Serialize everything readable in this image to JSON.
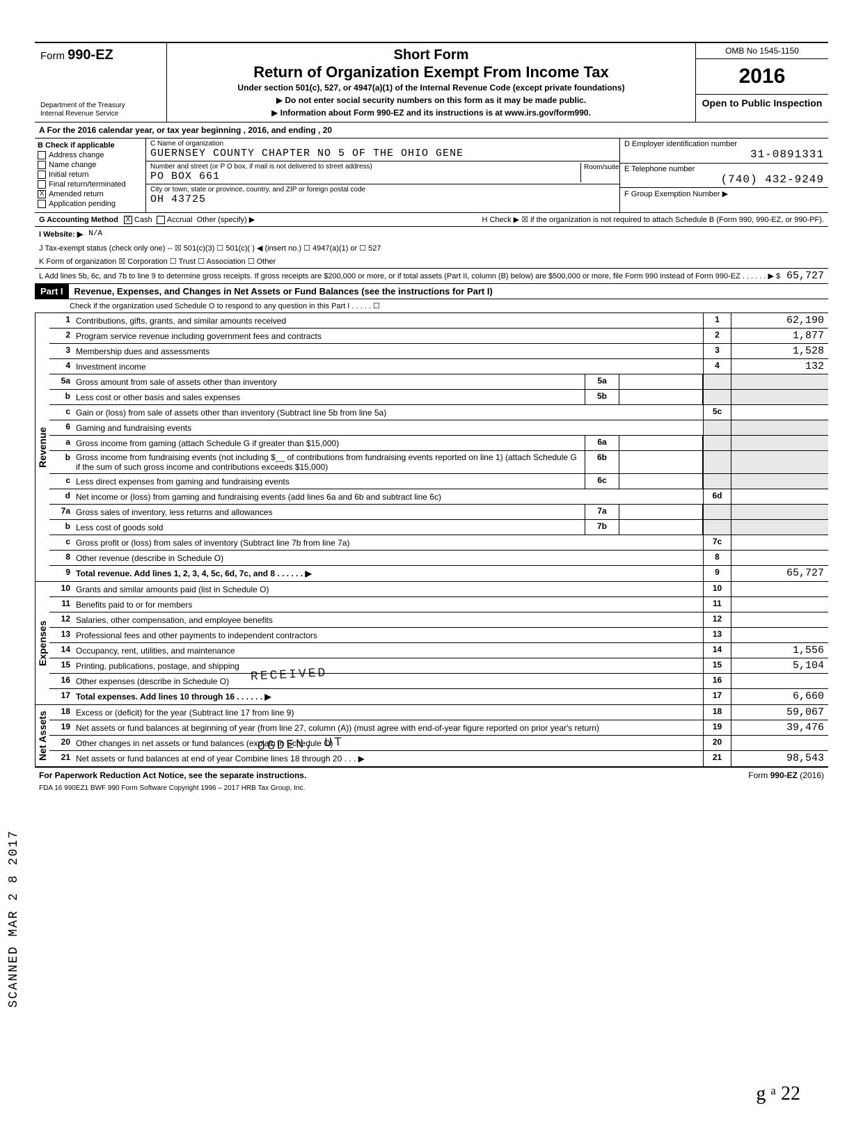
{
  "header": {
    "form_label": "Form",
    "form_number": "990-EZ",
    "dept1": "Department of the Treasury",
    "dept2": "Internal Revenue Service",
    "short": "Short Form",
    "title": "Return of Organization Exempt From Income Tax",
    "sub": "Under section 501(c), 527, or 4947(a)(1) of the Internal Revenue Code (except private foundations)",
    "note1": "Do not enter social security numbers on this form as it may be made public.",
    "note2": "Information about Form 990-EZ and its instructions is at www.irs.gov/form990.",
    "omb": "OMB No 1545-1150",
    "year": "2016",
    "open": "Open to Public Inspection"
  },
  "line_a": "A  For the 2016 calendar year, or tax year beginning                              , 2016, and ending                              , 20",
  "box_b": {
    "label": "B  Check if applicable",
    "items": [
      "Address change",
      "Name change",
      "Initial return",
      "Final return/terminated",
      "Amended return",
      "Application pending"
    ],
    "checked_index": 4
  },
  "box_c": {
    "name_label": "C  Name of organization",
    "name_val": "GUERNSEY COUNTY CHAPTER NO 5 OF THE OHIO GENE",
    "street_label": "Number and street (or P O  box, if mail is not delivered to street address)",
    "room_label": "Room/suite",
    "street_val": "PO BOX 661",
    "city_label": "City or town, state or province, country, and ZIP or foreign postal code",
    "city_val": "OH 43725"
  },
  "box_d": {
    "label": "D  Employer identification number",
    "val": "31-0891331"
  },
  "box_e": {
    "label": "E  Telephone number",
    "val": "(740) 432-9249"
  },
  "box_f": {
    "label": "F  Group Exemption Number  ▶"
  },
  "line_g": {
    "lbl": "G  Accounting Method",
    "opts": [
      "Cash",
      "Accrual",
      "Other (specify) ▶"
    ],
    "checked": 0
  },
  "line_h": "H  Check ▶ ☒ if the organization is not required to attach Schedule B (Form 990, 990-EZ, or 990-PF).",
  "line_i": {
    "lbl": "I  Website: ▶",
    "val": "N/A"
  },
  "line_j": "J  Tax-exempt status (check only one) --  ☒ 501(c)(3)    ☐ 501(c)(   ) ◀ (insert no.)   ☐ 4947(a)(1) or   ☐ 527",
  "line_k": "K  Form of organization   ☒ Corporation   ☐ Trust   ☐ Association   ☐ Other",
  "line_l": {
    "text": "L  Add lines 5b, 6c, and 7b to line 9 to determine gross receipts. If gross receipts are $200,000 or more, or if total assets (Part II, column (B) below) are $500,000 or more, file Form 990 instead of Form 990-EZ   . . . . . .   ▶  $",
    "val": "65,727"
  },
  "part1": {
    "label": "Part I",
    "title": "Revenue, Expenses, and Changes in Net Assets or Fund Balances (see the instructions for Part I)",
    "check_line": "Check if the organization used Schedule O to respond to any question in this Part I   . . . . .   ☐"
  },
  "sections": {
    "revenue": "Revenue",
    "expenses": "Expenses",
    "netassets": "Net Assets"
  },
  "rows": [
    {
      "n": "1",
      "d": "Contributions, gifts, grants, and similar amounts received",
      "box": "1",
      "v": "62,190"
    },
    {
      "n": "2",
      "d": "Program service revenue including government fees and contracts",
      "box": "2",
      "v": "1,877"
    },
    {
      "n": "3",
      "d": "Membership dues and assessments",
      "box": "3",
      "v": "1,528"
    },
    {
      "n": "4",
      "d": "Investment income",
      "box": "4",
      "v": "132"
    },
    {
      "n": "5a",
      "d": "Gross amount from sale of assets other than inventory",
      "mid": "5a",
      "shadedRight": true
    },
    {
      "n": "b",
      "d": "Less cost or other basis and sales expenses",
      "mid": "5b",
      "shadedRight": true
    },
    {
      "n": "c",
      "d": "Gain or (loss) from sale of assets other than inventory (Subtract line 5b from line 5a)",
      "box": "5c",
      "v": ""
    },
    {
      "n": "6",
      "d": "Gaming and fundraising events",
      "shadedRight": true,
      "noBox": true
    },
    {
      "n": "a",
      "d": "Gross income from gaming (attach Schedule G if greater than $15,000)",
      "mid": "6a",
      "shadedRight": true
    },
    {
      "n": "b",
      "d": "Gross income from fundraising events (not including  $__  of contributions from fundraising events reported on line 1) (attach Schedule G if the sum of such gross income and contributions exceeds $15,000)",
      "mid": "6b",
      "shadedRight": true
    },
    {
      "n": "c",
      "d": "Less direct expenses from gaming and fundraising events",
      "mid": "6c",
      "shadedRight": true
    },
    {
      "n": "d",
      "d": "Net income or (loss) from gaming and fundraising events (add lines 6a and 6b and subtract line 6c)",
      "box": "6d",
      "v": ""
    },
    {
      "n": "7a",
      "d": "Gross sales of inventory, less returns and allowances",
      "mid": "7a",
      "shadedRight": true
    },
    {
      "n": "b",
      "d": "Less cost of goods sold",
      "mid": "7b",
      "shadedRight": true
    },
    {
      "n": "c",
      "d": "Gross profit or (loss) from sales of inventory (Subtract line 7b from line 7a)",
      "box": "7c",
      "v": ""
    },
    {
      "n": "8",
      "d": "Other revenue (describe in Schedule O)",
      "box": "8",
      "v": ""
    },
    {
      "n": "9",
      "d": "Total revenue. Add lines 1, 2, 3, 4, 5c, 6d, 7c, and 8   . . . . . .  ▶",
      "box": "9",
      "v": "65,727",
      "bold": true
    }
  ],
  "exp_rows": [
    {
      "n": "10",
      "d": "Grants and similar amounts paid (list in Schedule O)",
      "box": "10",
      "v": ""
    },
    {
      "n": "11",
      "d": "Benefits paid to or for members",
      "box": "11",
      "v": ""
    },
    {
      "n": "12",
      "d": "Salaries, other compensation, and employee benefits",
      "box": "12",
      "v": ""
    },
    {
      "n": "13",
      "d": "Professional fees and other payments to independent contractors",
      "box": "13",
      "v": ""
    },
    {
      "n": "14",
      "d": "Occupancy, rent, utilities, and maintenance",
      "box": "14",
      "v": "1,556"
    },
    {
      "n": "15",
      "d": "Printing, publications, postage, and shipping",
      "box": "15",
      "v": "5,104"
    },
    {
      "n": "16",
      "d": "Other expenses (describe in Schedule O)",
      "box": "16",
      "v": ""
    },
    {
      "n": "17",
      "d": "Total expenses. Add lines 10 through 16   . . . . . .  ▶",
      "box": "17",
      "v": "6,660",
      "bold": true
    }
  ],
  "na_rows": [
    {
      "n": "18",
      "d": "Excess or (deficit) for the year (Subtract line 17 from line 9)",
      "box": "18",
      "v": "59,067"
    },
    {
      "n": "19",
      "d": "Net assets or fund balances at beginning of year (from line 27, column (A)) (must agree with end-of-year figure reported on prior year's return)",
      "box": "19",
      "v": "39,476"
    },
    {
      "n": "20",
      "d": "Other changes in net assets or fund balances (explain in Schedule O)",
      "box": "20",
      "v": ""
    },
    {
      "n": "21",
      "d": "Net assets or fund balances at end of year  Combine lines 18 through 20   . . .  ▶",
      "box": "21",
      "v": "98,543"
    }
  ],
  "footer": {
    "left": "For Paperwork Reduction Act Notice, see the separate instructions.",
    "right": "Form 990-EZ (2016)",
    "tiny": "FDA    16  990EZ1    BWF 990    Form Software Copyright 1996 – 2017 HRB Tax Group, Inc."
  },
  "side": "SCANNED MAR 2 8 2017",
  "stamp1": "RECEIVED",
  "stamp2": "OGDEN, UT",
  "stamp_date": "2017",
  "sig": "g ᵃ 22"
}
